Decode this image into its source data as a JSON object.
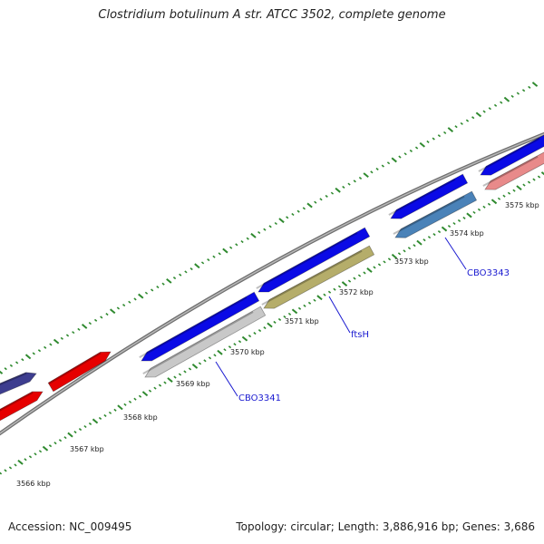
{
  "title": "Clostridium botulinum A str. ATCC 3502, complete genome",
  "accession": "Accession: NC_009495",
  "topology": "Topology: circular; Length: 3,886,916 bp; Genes: 3,686",
  "tick_labels": [
    "3566 kbp",
    "3567 kbp",
    "3568 kbp",
    "3569 kbp",
    "3570 kbp",
    "3571 kbp",
    "3572 kbp",
    "3573 kbp",
    "3574 kbp",
    "3575 kbp"
  ],
  "gene_labels": [
    "CBO3341",
    "ftsH",
    "CBO3343"
  ],
  "colors": {
    "backbone": "#8a8a8a",
    "ticks": "#2f8a2f",
    "cds_forward": "#0a0ae6",
    "cds_reverse": "#e60000",
    "cds_purple": "#3d3d8f",
    "gene_gray": "#c8c8c8",
    "gene_olive": "#b5ad6a",
    "gene_steelblue": "#4a82b8",
    "gene_salmon": "#e88a8a",
    "label_blue": "#1a1ad0"
  }
}
